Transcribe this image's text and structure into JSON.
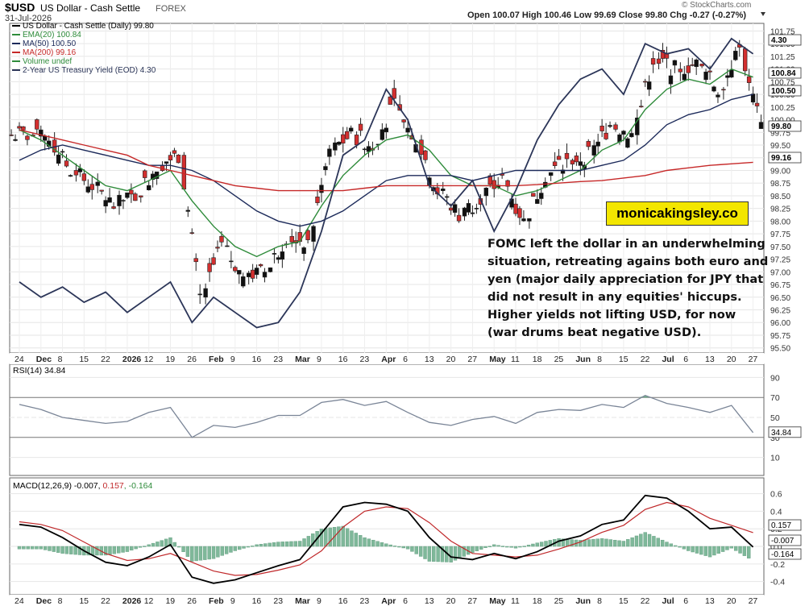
{
  "header": {
    "symbol": "$USD",
    "name": "US Dollar - Cash Settle",
    "exchange": "FOREX",
    "date": "31-Jul-2026",
    "ohlc": "Open 100.07  High 100.46  Low 99.69  Close 99.80  Chg -0.27 (-0.27%)",
    "credit": "© StockCharts.com"
  },
  "legend": [
    {
      "label": "US Dollar - Cash Settle (Daily) 99.80",
      "color": "#000000"
    },
    {
      "label": "EMA(20) 100.84",
      "color": "#2e8b3a"
    },
    {
      "label": "MA(50) 100.50",
      "color": "#1c2a5a"
    },
    {
      "label": "MA(200) 99.16",
      "color": "#c62828"
    },
    {
      "label": "Volume undef",
      "color": "#2e8b3a"
    },
    {
      "label": "2-Year US Treasury Yield (EOD) 4.30",
      "color": "#2b3558"
    }
  ],
  "banner": "monicakingsley.co",
  "note": "FOMC left the dollar in an underwhelming situation, retreating agains both euro and yen (major daily appreciation for JPY that did not result in any equities' hiccups. Higher yields not lifting USD, for now (war drums beat negative USD).",
  "x_labels": [
    "24",
    "Dec",
    "8",
    "15",
    "22",
    "2026",
    "12",
    "19",
    "26",
    "Feb",
    "9",
    "16",
    "23",
    "Mar",
    "9",
    "16",
    "23",
    "Apr",
    "6",
    "13",
    "20",
    "27",
    "May",
    "11",
    "18",
    "25",
    "Jun",
    "8",
    "15",
    "22",
    "Jul",
    "6",
    "13",
    "20",
    "27"
  ],
  "bold_x_labels": [
    "Dec",
    "2026",
    "Feb",
    "Mar",
    "Apr",
    "May",
    "Jun",
    "Jul"
  ],
  "chart_data": [
    {
      "type": "candlestick",
      "title": "US Dollar - Cash Settle (Daily)",
      "ylim": [
        95.5,
        101.75
      ],
      "y_ticks": [
        "101.75",
        "101.50",
        "101.25",
        "101.00",
        "100.75",
        "100.50",
        "100.25",
        "100.00",
        "99.75",
        "99.50",
        "99.25",
        "99.00",
        "98.75",
        "98.50",
        "98.25",
        "98.00",
        "97.75",
        "97.50",
        "97.25",
        "97.00",
        "96.75",
        "96.50",
        "96.25",
        "96.00",
        "95.75",
        "95.50"
      ],
      "price_markers": [
        {
          "value": 4.3,
          "label": "4.30",
          "series": "2-Year US Treasury Yield (EOD)"
        },
        {
          "value": 100.84,
          "label": "100.84",
          "series": "EMA(20)"
        },
        {
          "value": 100.5,
          "label": "100.50",
          "series": "MA(50)"
        },
        {
          "value": 99.8,
          "label": "99.80",
          "series": "US Dollar"
        },
        {
          "value": 99.16,
          "label": "99.16",
          "series": "MA(200)"
        }
      ],
      "close_by_week": [
        {
          "x": "24",
          "close": 99.7
        },
        {
          "x": "Dec",
          "close": 99.6
        },
        {
          "x": "8",
          "close": 99.0
        },
        {
          "x": "15",
          "close": 98.7
        },
        {
          "x": "22",
          "close": 98.3
        },
        {
          "x": "2026",
          "close": 98.5
        },
        {
          "x": "12",
          "close": 99.1
        },
        {
          "x": "19",
          "close": 99.3
        },
        {
          "x": "26",
          "close": 96.5
        },
        {
          "x": "Feb",
          "close": 97.5
        },
        {
          "x": "9",
          "close": 96.9
        },
        {
          "x": "16",
          "close": 97.0
        },
        {
          "x": "23",
          "close": 97.7
        },
        {
          "x": "Mar",
          "close": 97.6
        },
        {
          "x": "9",
          "close": 99.4
        },
        {
          "x": "16",
          "close": 99.7
        },
        {
          "x": "23",
          "close": 99.5
        },
        {
          "x": "Apr",
          "close": 100.3
        },
        {
          "x": "6",
          "close": 99.6
        },
        {
          "x": "13",
          "close": 98.6
        },
        {
          "x": "20",
          "close": 98.1
        },
        {
          "x": "27",
          "close": 98.5
        },
        {
          "x": "May",
          "close": 98.8
        },
        {
          "x": "11",
          "close": 98.0
        },
        {
          "x": "18",
          "close": 98.9
        },
        {
          "x": "25",
          "close": 99.2
        },
        {
          "x": "Jun",
          "close": 99.3
        },
        {
          "x": "8",
          "close": 99.9
        },
        {
          "x": "15",
          "close": 99.7
        },
        {
          "x": "22",
          "close": 101.2
        },
        {
          "x": "Jul",
          "close": 101.0
        },
        {
          "x": "6",
          "close": 101.1
        },
        {
          "x": "13",
          "close": 100.6
        },
        {
          "x": "20",
          "close": 101.4
        },
        {
          "x": "27",
          "close": 99.8
        }
      ],
      "ema20_by_week": [
        99.8,
        99.6,
        99.3,
        99.0,
        98.7,
        98.6,
        98.8,
        99.0,
        98.4,
        97.9,
        97.5,
        97.3,
        97.5,
        97.6,
        98.3,
        98.9,
        99.3,
        99.6,
        99.7,
        99.4,
        98.9,
        98.7,
        98.7,
        98.5,
        98.6,
        98.8,
        99.0,
        99.4,
        99.6,
        100.2,
        100.6,
        100.8,
        100.7,
        101.0,
        100.84
      ],
      "ma50_by_week": [
        99.2,
        99.4,
        99.5,
        99.4,
        99.3,
        99.2,
        99.1,
        99.1,
        99.0,
        98.8,
        98.5,
        98.2,
        98.0,
        97.9,
        98.0,
        98.2,
        98.5,
        98.8,
        98.9,
        98.9,
        98.9,
        98.8,
        98.9,
        99.0,
        99.0,
        99.0,
        99.0,
        99.1,
        99.2,
        99.5,
        99.9,
        100.1,
        100.2,
        100.4,
        100.5
      ],
      "ma200_by_week": [
        99.8,
        99.7,
        99.6,
        99.5,
        99.4,
        99.3,
        99.1,
        99.0,
        98.9,
        98.8,
        98.7,
        98.65,
        98.6,
        98.6,
        98.6,
        98.6,
        98.65,
        98.7,
        98.7,
        98.7,
        98.7,
        98.7,
        98.7,
        98.7,
        98.72,
        98.75,
        98.78,
        98.8,
        98.85,
        98.9,
        99.0,
        99.05,
        99.1,
        99.13,
        99.16
      ],
      "yield_by_week": [
        {
          "x": "24",
          "value": 96.8
        },
        {
          "x": "Dec",
          "value": 96.5
        },
        {
          "x": "8",
          "value": 96.7
        },
        {
          "x": "15",
          "value": 96.4
        },
        {
          "x": "22",
          "value": 96.6
        },
        {
          "x": "2026",
          "value": 96.2
        },
        {
          "x": "12",
          "value": 96.5
        },
        {
          "x": "19",
          "value": 96.8
        },
        {
          "x": "26",
          "value": 96.0
        },
        {
          "x": "Feb",
          "value": 96.5
        },
        {
          "x": "9",
          "value": 96.2
        },
        {
          "x": "16",
          "value": 95.9
        },
        {
          "x": "23",
          "value": 96.0
        },
        {
          "x": "Mar",
          "value": 96.6
        },
        {
          "x": "9",
          "value": 97.8
        },
        {
          "x": "16",
          "value": 99.3
        },
        {
          "x": "23",
          "value": 99.6
        },
        {
          "x": "Apr",
          "value": 100.6
        },
        {
          "x": "6",
          "value": 100.0
        },
        {
          "x": "13",
          "value": 98.7
        },
        {
          "x": "20",
          "value": 98.3
        },
        {
          "x": "27",
          "value": 98.8
        },
        {
          "x": "May",
          "value": 97.8
        },
        {
          "x": "11",
          "value": 98.6
        },
        {
          "x": "18",
          "value": 99.6
        },
        {
          "x": "25",
          "value": 100.3
        },
        {
          "x": "Jun",
          "value": 100.8
        },
        {
          "x": "8",
          "value": 101.0
        },
        {
          "x": "15",
          "value": 100.5
        },
        {
          "x": "22",
          "value": 101.5
        },
        {
          "x": "Jul",
          "value": 101.3
        },
        {
          "x": "6",
          "value": 101.4
        },
        {
          "x": "13",
          "value": 101.0
        },
        {
          "x": "20",
          "value": 101.6
        },
        {
          "x": "27",
          "value": 101.3
        }
      ],
      "colors": {
        "up": "#111111",
        "down": "#d32f2f",
        "ema": "#2e8b3a",
        "ma50": "#1c2a5a",
        "ma200": "#c62828",
        "yield": "#2b3558"
      }
    },
    {
      "type": "line",
      "title": "RSI(14) 34.84",
      "ylim": [
        0,
        100
      ],
      "y_ticks": [
        "90",
        "70",
        "50",
        "30",
        "10"
      ],
      "marker": "34.84",
      "values": [
        63,
        58,
        50,
        47,
        44,
        46,
        55,
        60,
        30,
        42,
        40,
        45,
        52,
        52,
        65,
        68,
        62,
        66,
        55,
        45,
        42,
        48,
        51,
        44,
        55,
        58,
        57,
        63,
        60,
        72,
        64,
        60,
        55,
        62,
        34.84
      ],
      "colors": {
        "line": "#7a8597",
        "fill": "#6fb08a"
      }
    },
    {
      "type": "line",
      "title": "MACD(12,26,9) -0.007, 0.157, -0.164",
      "title_parts": [
        "MACD(12,26,9) -0.007, ",
        "0.157",
        ", -0.164"
      ],
      "ylim": [
        -0.6,
        0.8
      ],
      "y_ticks": [
        "0.6",
        "0.4",
        "0.2",
        "0.0",
        "-0.2",
        "-0.4"
      ],
      "markers": [
        "0.157",
        "-0.007",
        "-0.164"
      ],
      "macd": [
        0.25,
        0.22,
        0.1,
        -0.05,
        -0.18,
        -0.22,
        -0.12,
        0.02,
        -0.35,
        -0.42,
        -0.38,
        -0.3,
        -0.22,
        -0.15,
        0.15,
        0.45,
        0.5,
        0.48,
        0.4,
        0.1,
        -0.12,
        -0.15,
        -0.08,
        -0.14,
        -0.06,
        0.06,
        0.12,
        0.25,
        0.3,
        0.58,
        0.55,
        0.4,
        0.2,
        0.22,
        -0.007
      ],
      "signal": [
        0.28,
        0.25,
        0.18,
        0.05,
        -0.08,
        -0.16,
        -0.14,
        -0.08,
        -0.18,
        -0.28,
        -0.33,
        -0.32,
        -0.27,
        -0.21,
        -0.05,
        0.22,
        0.4,
        0.45,
        0.43,
        0.27,
        0.06,
        -0.08,
        -0.1,
        -0.12,
        -0.1,
        -0.03,
        0.05,
        0.16,
        0.24,
        0.42,
        0.5,
        0.45,
        0.32,
        0.24,
        0.157
      ],
      "colors": {
        "macd": "#000000",
        "signal": "#c0282a",
        "hist": "#7fb89a"
      }
    }
  ]
}
